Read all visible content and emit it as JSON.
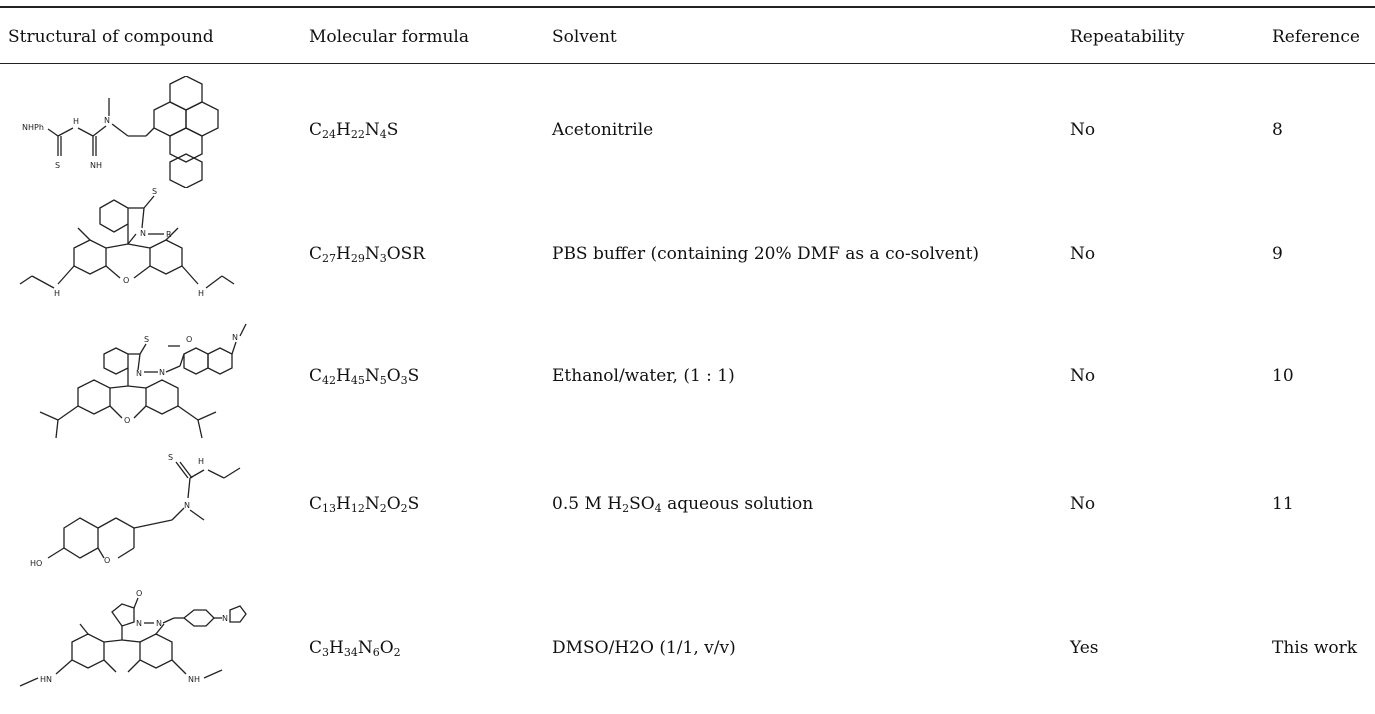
{
  "table": {
    "headers": {
      "structure": "Structural of compound",
      "formula": "Molecular formula",
      "solvent": "Solvent",
      "repeatability": "Repeatability",
      "reference": "Reference"
    },
    "rows": [
      {
        "structure_icon": "anthracene-thiourea-guanidine-structure-icon",
        "structure_labels": {
          "a": "NHPh",
          "b": "H",
          "c": "N",
          "d": "N",
          "e": "S",
          "f": "NH"
        },
        "formula": {
          "p1": "C",
          "s1": "24",
          "p2": "H",
          "s2": "22",
          "p3": "N",
          "s3": "4",
          "p4": "S",
          "s4": "",
          "p5": "",
          "s5": "",
          "p6": ""
        },
        "solvent": {
          "p1": "Acetonitrile",
          "s1": "",
          "p2": "",
          "s2": "",
          "p3": ""
        },
        "repeatability": "No",
        "reference": "8"
      },
      {
        "structure_icon": "rhodamine-thiolactam-structure-icon",
        "structure_labels": {
          "a": "S",
          "b": "N",
          "c": "R",
          "d": "O",
          "e": "H",
          "f": "H"
        },
        "formula": {
          "p1": "C",
          "s1": "27",
          "p2": "H",
          "s2": "29",
          "p3": "N",
          "s3": "3",
          "p4": "OSR",
          "s4": "",
          "p5": "",
          "s5": "",
          "p6": ""
        },
        "solvent": {
          "p1": "PBS buffer (containing 20% DMF as a co-solvent)",
          "s1": "",
          "p2": "",
          "s2": "",
          "p3": ""
        },
        "repeatability": "No",
        "reference": "9"
      },
      {
        "structure_icon": "rhodamine-coumarin-hydrazone-structure-icon",
        "structure_labels": {
          "a": "S",
          "b": "N",
          "c": "N",
          "d": "O",
          "e": "O",
          "f": "N"
        },
        "formula": {
          "p1": "C",
          "s1": "42",
          "p2": "H",
          "s2": "45",
          "p3": "N",
          "s3": "5",
          "p4": "O",
          "s4": "3",
          "p5": "S",
          "s5": "",
          "p6": ""
        },
        "solvent": {
          "p1": "Ethanol/water, (1 : 1)",
          "s1": "",
          "p2": "",
          "s2": "",
          "p3": ""
        },
        "repeatability": "No",
        "reference": "10"
      },
      {
        "structure_icon": "chromene-thiourea-structure-icon",
        "structure_labels": {
          "a": "S",
          "b": "H",
          "c": "N",
          "d": "N",
          "e": "HO",
          "f": "O"
        },
        "formula": {
          "p1": "C",
          "s1": "13",
          "p2": "H",
          "s2": "12",
          "p3": "N",
          "s3": "2",
          "p4": "O",
          "s4": "2",
          "p5": "S",
          "s5": "",
          "p6": ""
        },
        "solvent": {
          "p1": "0.5 M H",
          "s1": "2",
          "p2": "SO",
          "s2": "4",
          "p3": " aqueous solution"
        },
        "repeatability": "No",
        "reference": "11"
      },
      {
        "structure_icon": "rhodamine-pyrrolidinone-imidazole-structure-icon",
        "structure_labels": {
          "a": "O",
          "b": "N",
          "c": "N",
          "d": "HN",
          "e": "NH",
          "f": "N"
        },
        "formula": {
          "p1": "C",
          "s1": "3",
          "p2": "H",
          "s2": "34",
          "p3": "N",
          "s3": "6",
          "p4": "O",
          "s4": "2",
          "p5": "",
          "s5": "",
          "p6": ""
        },
        "solvent": {
          "p1": "DMSO/H2O (1/1, v/v)",
          "s1": "",
          "p2": "",
          "s2": "",
          "p3": ""
        },
        "repeatability": "Yes",
        "reference": "This work"
      }
    ]
  }
}
